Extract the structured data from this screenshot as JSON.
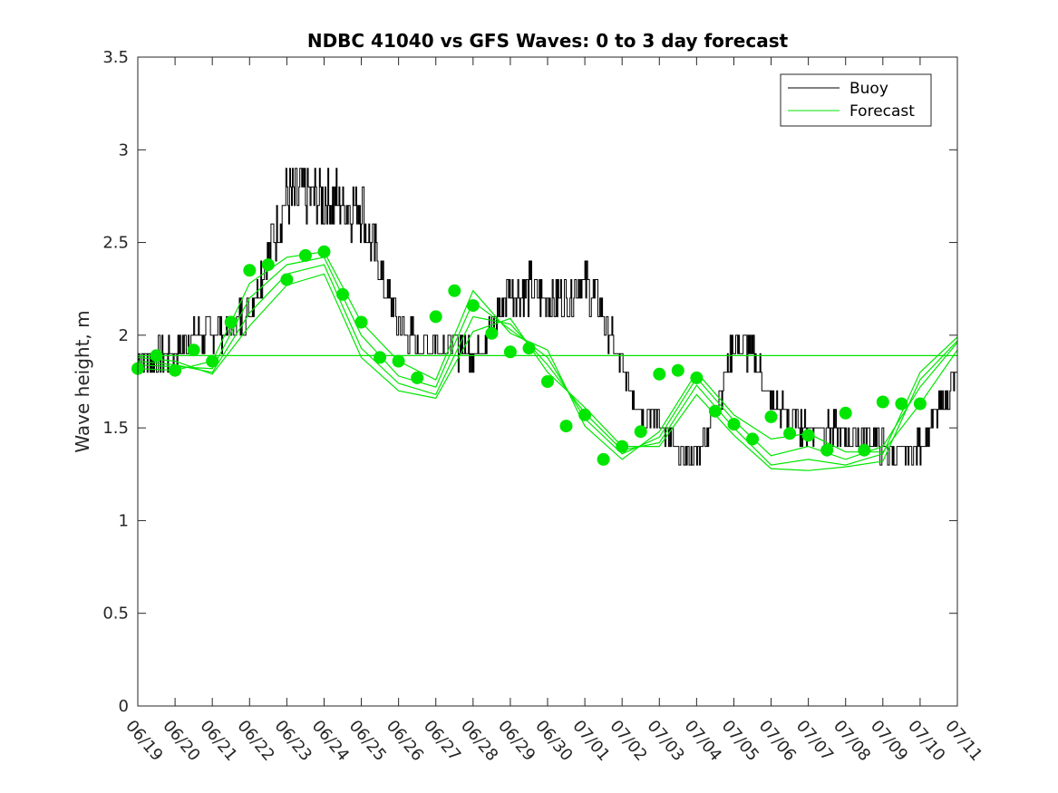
{
  "chart_data": {
    "type": "line",
    "title": "NDBC 41040 vs GFS Waves: 0 to 3 day forecast",
    "xlabel": "",
    "ylabel": "Wave height, m",
    "ylim": [
      0,
      3.5
    ],
    "yticks": [
      "0",
      "0.5",
      "1",
      "1.5",
      "2",
      "2.5",
      "3",
      "3.5"
    ],
    "x_unit": "day index, 06/19 = 0",
    "xlim": [
      0,
      22
    ],
    "xticks": [
      "06/19",
      "06/20",
      "06/21",
      "06/22",
      "06/23",
      "06/24",
      "06/25",
      "06/26",
      "06/27",
      "06/28",
      "06/29",
      "06/30",
      "07/01",
      "07/02",
      "07/03",
      "07/04",
      "07/05",
      "07/06",
      "07/07",
      "07/08",
      "07/09",
      "07/10",
      "07/11"
    ],
    "grid": false,
    "legend": {
      "position": "top-right",
      "entries": [
        {
          "name": "Buoy",
          "color": "#000000"
        },
        {
          "name": "Forecast",
          "color": "#00e600"
        }
      ]
    },
    "reference_line": {
      "y": 1.89,
      "color": "#00e600"
    },
    "buoy": {
      "name": "Buoy",
      "color": "#000000",
      "x": [
        0,
        0.5,
        1,
        1.5,
        2,
        2.5,
        3,
        3.5,
        4,
        4.5,
        5,
        5.5,
        6,
        6.5,
        7,
        7.5,
        8,
        8.5,
        9,
        9.5,
        10,
        10.5,
        11,
        11.5,
        12,
        12.5,
        13,
        13.5,
        14,
        14.5,
        15,
        15.5,
        16,
        16.5,
        17,
        17.5,
        18,
        18.5,
        19,
        19.5,
        20,
        20.5,
        21,
        21.5,
        22
      ],
      "y": [
        1.85,
        1.9,
        1.9,
        2.0,
        2.0,
        2.05,
        2.15,
        2.45,
        2.75,
        2.75,
        2.75,
        2.7,
        2.7,
        2.35,
        2.05,
        1.95,
        1.95,
        1.95,
        1.9,
        2.05,
        2.25,
        2.25,
        2.2,
        2.2,
        2.3,
        2.1,
        1.8,
        1.6,
        1.55,
        1.35,
        1.35,
        1.6,
        1.95,
        1.9,
        1.65,
        1.55,
        1.5,
        1.5,
        1.45,
        1.45,
        1.4,
        1.35,
        1.4,
        1.6,
        1.8
      ]
    },
    "forecast_runs": {
      "color": "#00e600",
      "x": [
        0,
        1,
        2,
        3,
        4,
        5,
        6,
        7,
        8,
        9,
        10,
        11,
        12,
        13,
        14,
        15,
        16,
        17,
        18,
        19,
        20,
        21,
        22
      ],
      "members": [
        [
          1.82,
          1.81,
          1.86,
          2.28,
          2.42,
          2.45,
          2.07,
          1.86,
          1.76,
          2.24,
          2.01,
          1.92,
          1.51,
          1.33,
          1.48,
          1.8,
          1.57,
          1.44,
          1.47,
          1.37,
          1.37,
          1.63,
          1.92
        ],
        [
          1.84,
          1.83,
          1.82,
          2.2,
          2.38,
          2.42,
          2.0,
          1.78,
          1.72,
          2.18,
          2.03,
          1.88,
          1.55,
          1.36,
          1.45,
          1.77,
          1.54,
          1.35,
          1.4,
          1.33,
          1.4,
          1.72,
          1.96
        ],
        [
          1.86,
          1.84,
          1.8,
          2.12,
          2.33,
          2.38,
          1.93,
          1.74,
          1.68,
          2.1,
          2.06,
          1.84,
          1.58,
          1.38,
          1.42,
          1.73,
          1.5,
          1.3,
          1.33,
          1.3,
          1.36,
          1.8,
          1.99
        ],
        [
          1.88,
          1.86,
          1.79,
          2.05,
          2.27,
          2.33,
          1.88,
          1.7,
          1.66,
          2.02,
          2.09,
          1.8,
          1.61,
          1.4,
          1.4,
          1.68,
          1.46,
          1.28,
          1.27,
          1.29,
          1.32,
          1.76,
          1.97
        ]
      ]
    },
    "analysis": {
      "color": "#00e600",
      "x": [
        0,
        0.5,
        1,
        1.5,
        2,
        2.5,
        3,
        3.5,
        4,
        4.5,
        5,
        5.5,
        6,
        6.5,
        7,
        7.5,
        8,
        8.5,
        9,
        9.5,
        10,
        10.5,
        11,
        11.5,
        12,
        12.5,
        13,
        13.5,
        14,
        14.5,
        15,
        15.5,
        16,
        16.5,
        17,
        17.5,
        18,
        18.5,
        19,
        19.5,
        20,
        20.5,
        21
      ],
      "y": [
        1.82,
        1.89,
        1.81,
        1.92,
        1.86,
        2.07,
        2.35,
        2.38,
        2.3,
        2.43,
        2.45,
        2.22,
        2.07,
        1.88,
        1.86,
        1.77,
        2.1,
        2.24,
        2.16,
        2.01,
        1.91,
        1.93,
        1.75,
        1.51,
        1.57,
        1.33,
        1.4,
        1.48,
        1.79,
        1.81,
        1.77,
        1.59,
        1.52,
        1.44,
        1.56,
        1.47,
        1.46,
        1.38,
        1.58,
        1.38,
        1.64,
        1.63,
        1.63
      ]
    }
  }
}
